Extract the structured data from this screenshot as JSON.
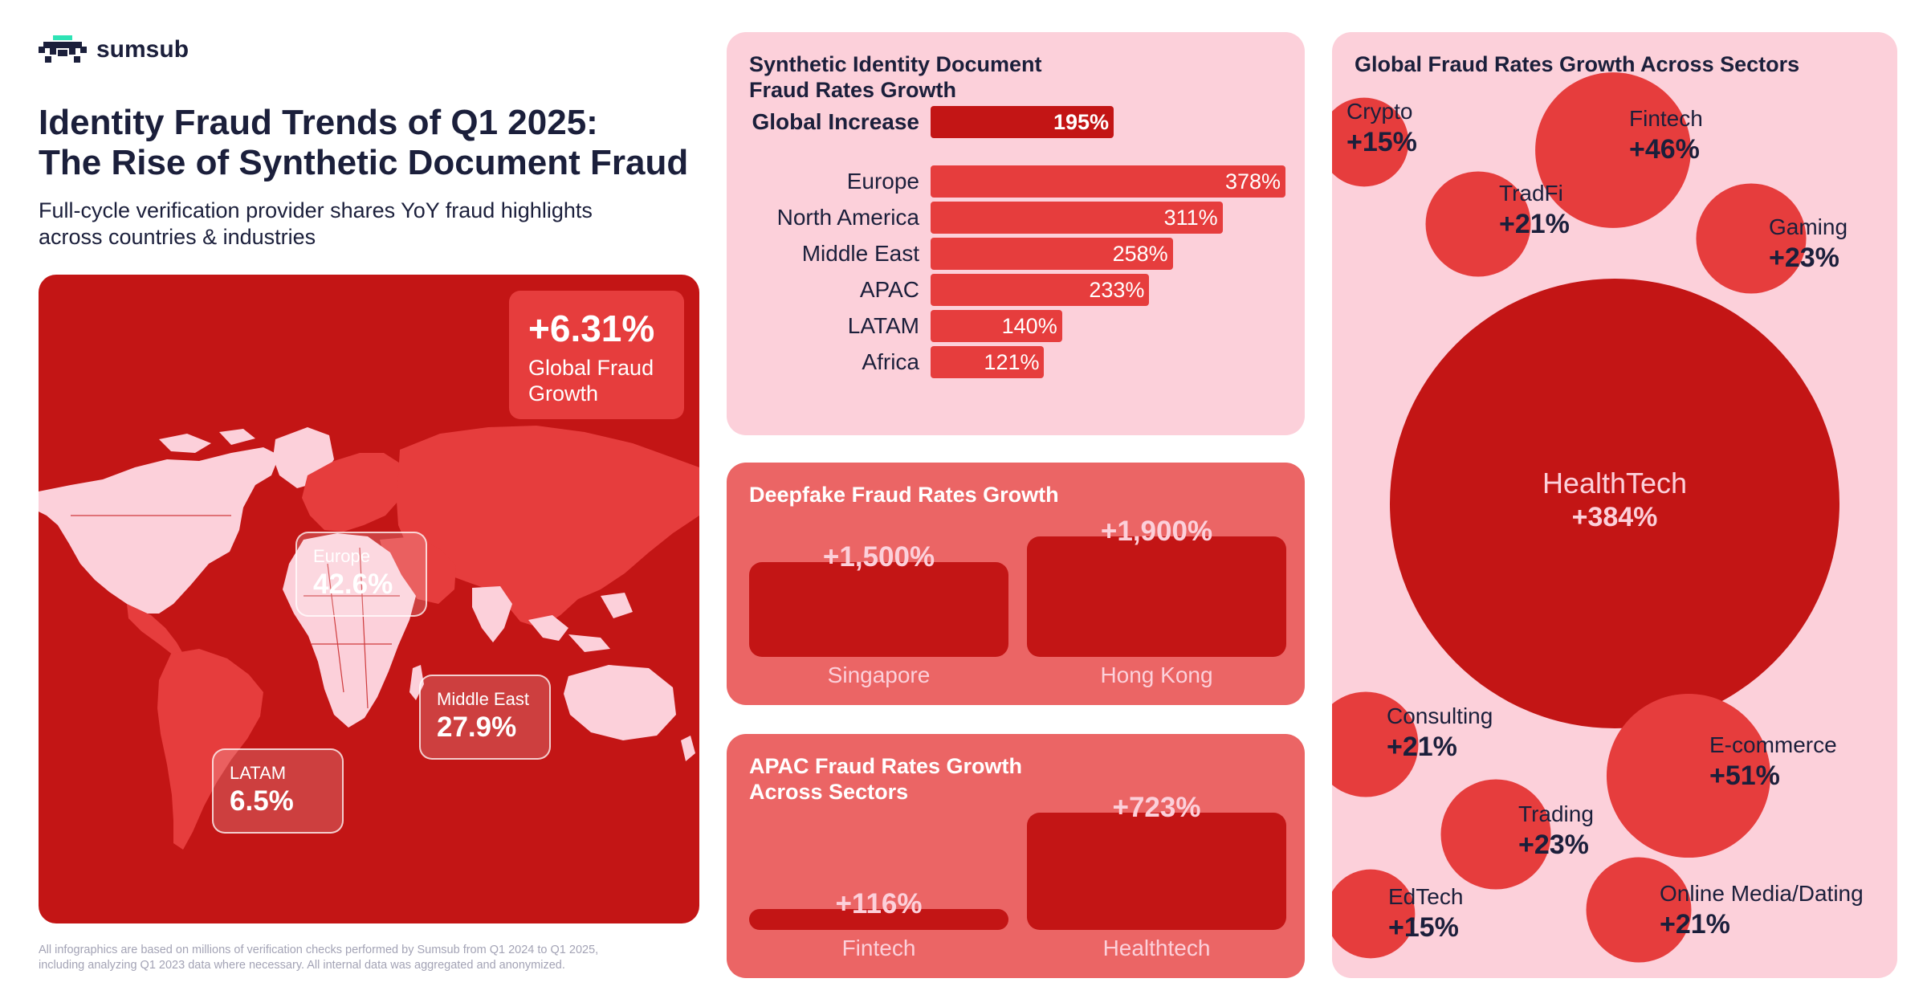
{
  "brand": {
    "name": "sumsub",
    "logo_icon": "pixel-invader-icon"
  },
  "title_lines": [
    "Identity Fraud Trends of Q1 2025:",
    "The Rise of Synthetic Document Fraud"
  ],
  "subtitle_lines": [
    "Full-cycle verification provider shares YoY fraud highlights",
    "across countries & industries"
  ],
  "map": {
    "global": {
      "value": "+6.31%",
      "label_lines": [
        "Global Fraud",
        "Growth"
      ]
    },
    "regions": [
      {
        "name": "Europe",
        "value": "42.6%"
      },
      {
        "name": "Middle East",
        "value": "27.9%"
      },
      {
        "name": "LATAM",
        "value": "6.5%"
      }
    ]
  },
  "footnote_lines": [
    "All infographics are based on millions of verification checks performed by Sumsub from Q1 2024 to Q1 2025,",
    "including analyzing Q1 2023 data where necessary. All internal data was aggregated and anonymized."
  ],
  "colors": {
    "dark_red": "#c31515",
    "red": "#e63d3d",
    "coral": "#eb6565",
    "pink": "#fcd0da",
    "navy": "#1b1f3b"
  },
  "chart_data": [
    {
      "type": "bar",
      "orientation": "horizontal",
      "title_lines": [
        "Synthetic Identity Document",
        "Fraud Rates Growth"
      ],
      "highlight": {
        "category": "Global Increase",
        "value": 195,
        "label": "195%"
      },
      "categories": [
        "Europe",
        "North America",
        "Middle East",
        "APAC",
        "LATAM",
        "Africa"
      ],
      "values": [
        378,
        311,
        258,
        233,
        140,
        121
      ],
      "labels": [
        "378%",
        "311%",
        "258%",
        "233%",
        "140%",
        "121%"
      ],
      "xlim": [
        0,
        378
      ]
    },
    {
      "type": "bar",
      "title_lines": [
        "Deepfake Fraud Rates Growth"
      ],
      "categories": [
        "Singapore",
        "Hong Kong"
      ],
      "values": [
        1500,
        1900
      ],
      "labels": [
        "+1,500%",
        "+1,900%"
      ],
      "ylim": [
        0,
        1900
      ]
    },
    {
      "type": "bar",
      "title_lines": [
        "APAC Fraud Rates Growth",
        "Across Sectors"
      ],
      "categories": [
        "Fintech",
        "Healthtech"
      ],
      "values": [
        116,
        723
      ],
      "labels": [
        "+116%",
        "+723%"
      ],
      "ylim": [
        0,
        723
      ]
    },
    {
      "type": "scatter",
      "subtype": "bubble",
      "title_lines": [
        "Global Fraud Rates Growth Across Sectors"
      ],
      "points": [
        {
          "name": "Crypto",
          "value": 15,
          "label": "+15%"
        },
        {
          "name": "Fintech",
          "value": 46,
          "label": "+46%"
        },
        {
          "name": "TradFi",
          "value": 21,
          "label": "+21%"
        },
        {
          "name": "Gaming",
          "value": 23,
          "label": "+23%"
        },
        {
          "name": "HealthTech",
          "value": 384,
          "label": "+384%"
        },
        {
          "name": "Consulting",
          "value": 21,
          "label": "+21%"
        },
        {
          "name": "E-commerce",
          "value": 51,
          "label": "+51%"
        },
        {
          "name": "Trading",
          "value": 23,
          "label": "+23%"
        },
        {
          "name": "EdTech",
          "value": 15,
          "label": "+15%"
        },
        {
          "name": "Online Media/Dating",
          "value": 21,
          "label": "+21%"
        }
      ]
    }
  ]
}
